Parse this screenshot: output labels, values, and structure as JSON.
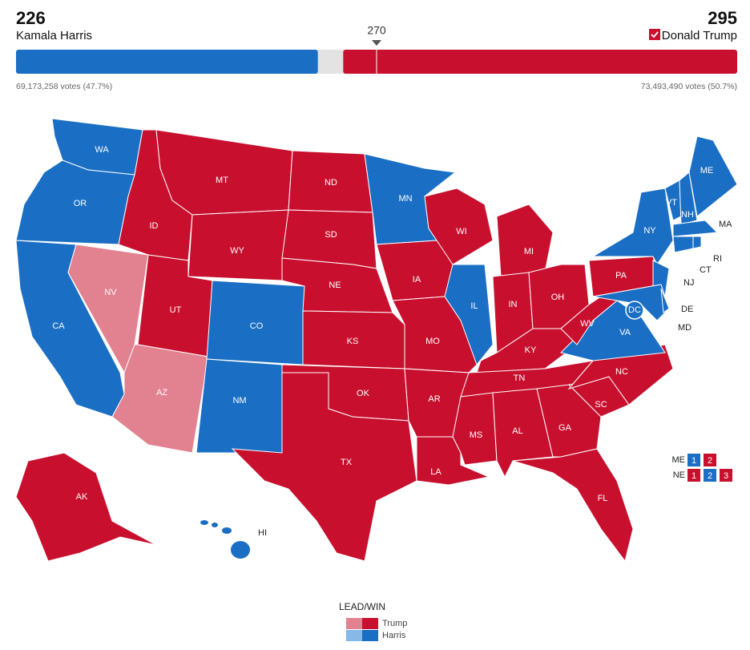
{
  "header": {
    "harris_ev": 226,
    "harris_name": "Kamala Harris",
    "trump_ev": 295,
    "trump_name": "Donald Trump",
    "threshold": 270,
    "harris_votes": "69,173,258 votes (47.7%)",
    "trump_votes": "73,493,490 votes (50.7%)"
  },
  "colors": {
    "trump-win": "#c8102e",
    "trump-lead": "#e2818f",
    "harris-win": "#1a6fc4",
    "harris-lead": "#86b8e8",
    "pending": "#e3e3e3"
  },
  "states": [
    {
      "label": "WA",
      "status": "harris-win"
    },
    {
      "label": "OR",
      "status": "harris-win"
    },
    {
      "label": "CA",
      "status": "harris-win"
    },
    {
      "label": "NV",
      "status": "trump-lead"
    },
    {
      "label": "ID",
      "status": "trump-win"
    },
    {
      "label": "MT",
      "status": "trump-win"
    },
    {
      "label": "WY",
      "status": "trump-win"
    },
    {
      "label": "UT",
      "status": "trump-win"
    },
    {
      "label": "AZ",
      "status": "trump-lead"
    },
    {
      "label": "CO",
      "status": "harris-win"
    },
    {
      "label": "NM",
      "status": "harris-win"
    },
    {
      "label": "ND",
      "status": "trump-win"
    },
    {
      "label": "SD",
      "status": "trump-win"
    },
    {
      "label": "NE",
      "status": "trump-win"
    },
    {
      "label": "KS",
      "status": "trump-win"
    },
    {
      "label": "OK",
      "status": "trump-win"
    },
    {
      "label": "TX",
      "status": "trump-win"
    },
    {
      "label": "MN",
      "status": "harris-win"
    },
    {
      "label": "IA",
      "status": "trump-win"
    },
    {
      "label": "MO",
      "status": "trump-win"
    },
    {
      "label": "AR",
      "status": "trump-win"
    },
    {
      "label": "LA",
      "status": "trump-win"
    },
    {
      "label": "WI",
      "status": "trump-win"
    },
    {
      "label": "IL",
      "status": "harris-win"
    },
    {
      "label": "MI",
      "status": "trump-win"
    },
    {
      "label": "IN",
      "status": "trump-win"
    },
    {
      "label": "OH",
      "status": "trump-win"
    },
    {
      "label": "KY",
      "status": "trump-win"
    },
    {
      "label": "TN",
      "status": "trump-win"
    },
    {
      "label": "MS",
      "status": "trump-win"
    },
    {
      "label": "AL",
      "status": "trump-win"
    },
    {
      "label": "GA",
      "status": "trump-win"
    },
    {
      "label": "FL",
      "status": "trump-win"
    },
    {
      "label": "SC",
      "status": "trump-win"
    },
    {
      "label": "NC",
      "status": "trump-win"
    },
    {
      "label": "VA",
      "status": "harris-win"
    },
    {
      "label": "WV",
      "status": "trump-win"
    },
    {
      "label": "PA",
      "status": "trump-win"
    },
    {
      "label": "NY",
      "status": "harris-win"
    },
    {
      "label": "NJ",
      "status": "harris-win"
    },
    {
      "label": "MD",
      "status": "harris-win"
    },
    {
      "label": "DE",
      "status": "harris-win"
    },
    {
      "label": "VT",
      "status": "harris-win"
    },
    {
      "label": "NH",
      "status": "harris-win"
    },
    {
      "label": "ME",
      "status": "harris-win"
    },
    {
      "label": "MA",
      "status": "harris-win"
    },
    {
      "label": "CT",
      "status": "harris-win"
    },
    {
      "label": "RI",
      "status": "harris-win"
    },
    {
      "label": "AK",
      "status": "trump-win"
    },
    {
      "label": "HI",
      "status": "harris-win"
    },
    {
      "label": "DC",
      "status": "harris-win"
    }
  ],
  "districts": [
    {
      "label": "ME",
      "seats": [
        {
          "label": "1",
          "status": "harris-win"
        },
        {
          "label": "2",
          "status": "trump-win"
        }
      ]
    },
    {
      "label": "NE",
      "seats": [
        {
          "label": "1",
          "status": "trump-win"
        },
        {
          "label": "2",
          "status": "harris-win"
        },
        {
          "label": "3",
          "status": "trump-win"
        }
      ]
    }
  ],
  "legend": {
    "title": "LEAD/WIN",
    "items": [
      {
        "label": "Trump",
        "lead": "trump-lead",
        "win": "trump-win"
      },
      {
        "label": "Harris",
        "lead": "harris-lead",
        "win": "harris-win"
      }
    ]
  }
}
